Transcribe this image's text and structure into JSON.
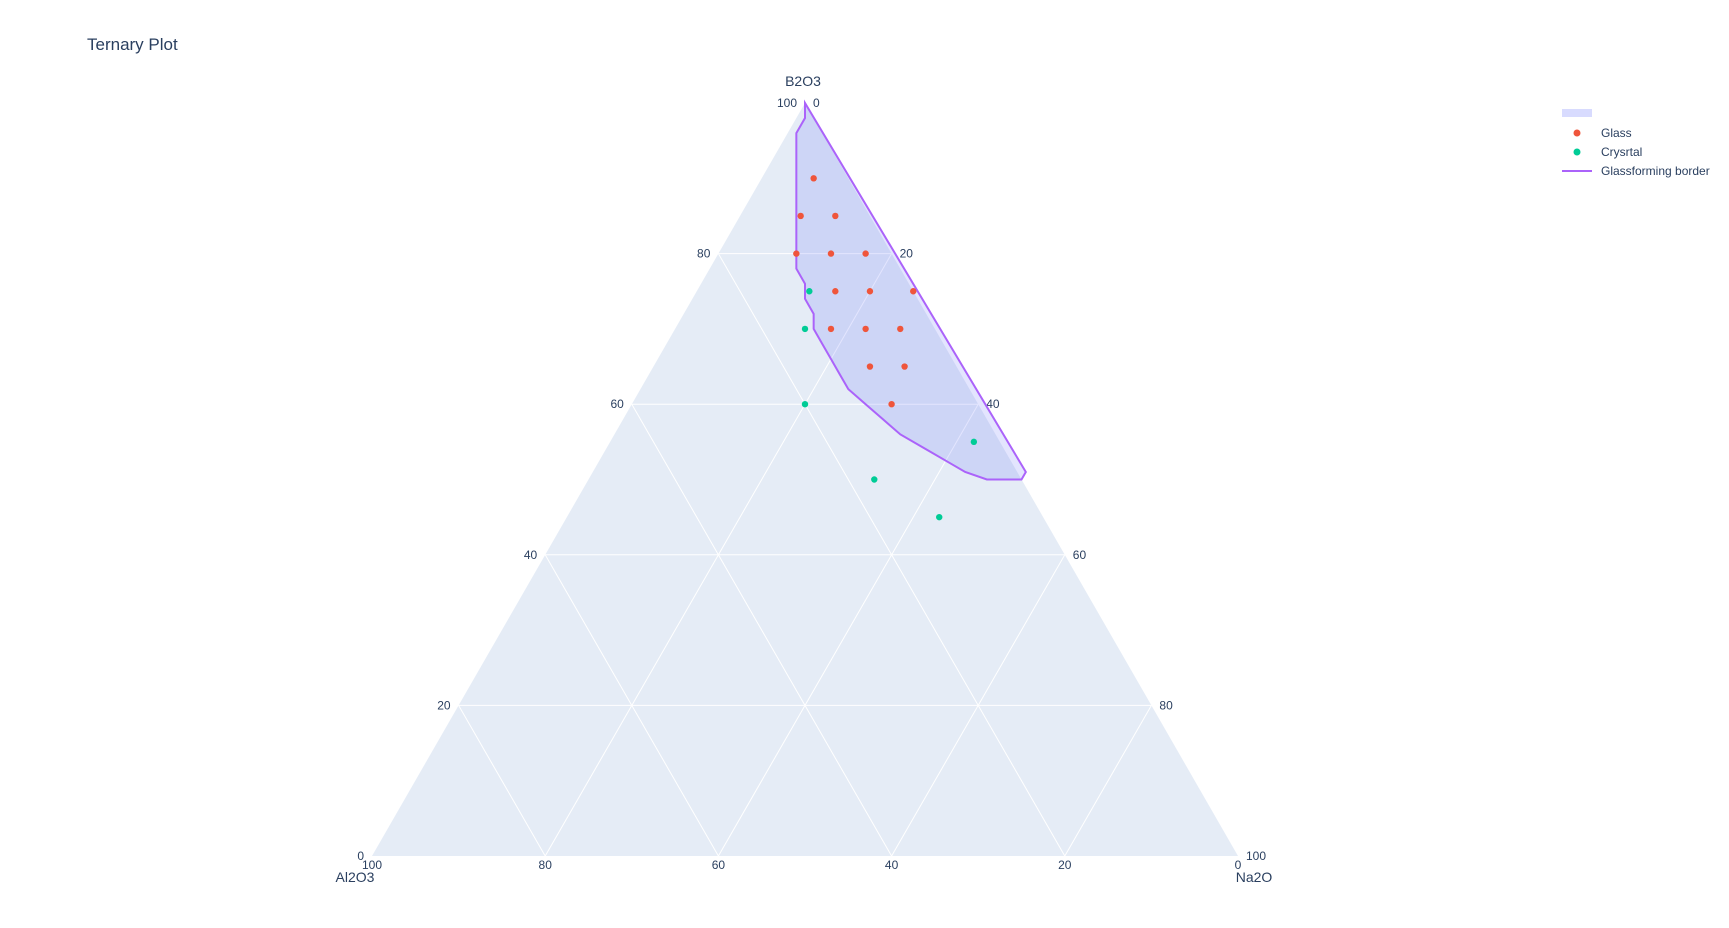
{
  "chart_data": {
    "type": "scatter",
    "subtype": "ternary",
    "title": "Ternary Plot",
    "axes": {
      "a": {
        "title": "B2O3",
        "ticks": [
          0,
          20,
          40,
          60,
          80,
          100
        ],
        "tick_labels": [
          "0",
          "20",
          "40",
          "60",
          "80",
          "100"
        ]
      },
      "b": {
        "title": "Al2O3",
        "ticks": [
          0,
          20,
          40,
          60,
          80,
          100
        ],
        "tick_labels": [
          "0",
          "20",
          "40",
          "60",
          "80",
          "100"
        ]
      },
      "c": {
        "title": "Na2O",
        "ticks": [
          0,
          20,
          40,
          60,
          80,
          100
        ],
        "tick_labels": [
          "0",
          "20",
          "40",
          "60",
          "80",
          "100"
        ]
      }
    },
    "grid": true,
    "legend_position": "top-right",
    "series": [
      {
        "name": "",
        "type": "filled-region",
        "color": "#636efa",
        "points": [
          [
            100,
            0,
            0
          ],
          [
            98,
            1,
            1
          ],
          [
            96,
            3,
            1
          ],
          [
            94,
            4,
            2
          ],
          [
            92,
            5,
            3
          ],
          [
            90,
            6,
            4
          ],
          [
            88,
            7,
            5
          ],
          [
            86,
            8,
            6
          ],
          [
            84,
            9,
            7
          ],
          [
            82,
            10,
            8
          ],
          [
            80,
            11,
            9
          ],
          [
            78,
            12,
            10
          ],
          [
            76,
            12,
            12
          ],
          [
            74,
            13,
            13
          ],
          [
            72,
            13,
            15
          ],
          [
            70,
            14,
            16
          ],
          [
            68,
            14,
            18
          ],
          [
            66,
            14,
            20
          ],
          [
            64,
            14,
            22
          ],
          [
            62,
            14,
            24
          ],
          [
            60,
            13,
            27
          ],
          [
            58,
            12,
            30
          ],
          [
            56,
            11,
            33
          ],
          [
            54,
            9,
            37
          ],
          [
            52,
            7,
            41
          ],
          [
            51,
            6,
            43
          ],
          [
            50,
            4,
            46
          ],
          [
            50,
            2,
            48
          ],
          [
            50,
            0,
            50
          ],
          [
            51,
            -1,
            50
          ]
        ]
      },
      {
        "name": "Glass",
        "type": "markers",
        "color": "#ef553b",
        "points": [
          [
            90,
            4,
            6
          ],
          [
            85,
            8,
            7
          ],
          [
            85,
            4,
            11
          ],
          [
            80,
            11,
            9
          ],
          [
            80,
            7,
            13
          ],
          [
            80,
            3,
            17
          ],
          [
            75,
            9,
            16
          ],
          [
            75,
            5,
            20
          ],
          [
            75,
            0,
            25
          ],
          [
            70,
            12,
            18
          ],
          [
            70,
            8,
            22
          ],
          [
            70,
            4,
            26
          ],
          [
            65,
            10,
            25
          ],
          [
            65,
            6,
            29
          ],
          [
            60,
            10,
            30
          ]
        ]
      },
      {
        "name": "Crysrtal",
        "type": "markers",
        "color": "#00cc96",
        "points": [
          [
            75,
            12,
            13
          ],
          [
            70,
            15,
            15
          ],
          [
            60,
            20,
            20
          ],
          [
            55,
            3,
            42
          ],
          [
            50,
            17,
            33
          ],
          [
            45,
            12,
            43
          ]
        ]
      },
      {
        "name": "Glassforming border",
        "type": "line",
        "color": "#ab63fa",
        "points": [
          [
            100,
            0,
            0
          ],
          [
            98,
            1,
            1
          ],
          [
            96,
            3,
            1
          ],
          [
            94,
            4,
            2
          ],
          [
            92,
            5,
            3
          ],
          [
            90,
            6,
            4
          ],
          [
            88,
            7,
            5
          ],
          [
            86,
            8,
            6
          ],
          [
            84,
            9,
            7
          ],
          [
            82,
            10,
            8
          ],
          [
            80,
            11,
            9
          ],
          [
            78,
            12,
            10
          ],
          [
            76,
            12,
            12
          ],
          [
            74,
            13,
            13
          ],
          [
            72,
            13,
            15
          ],
          [
            70,
            14,
            16
          ],
          [
            68,
            14,
            18
          ],
          [
            66,
            14,
            20
          ],
          [
            64,
            14,
            22
          ],
          [
            62,
            14,
            24
          ],
          [
            60,
            13,
            27
          ],
          [
            58,
            12,
            30
          ],
          [
            56,
            11,
            33
          ],
          [
            54,
            9,
            37
          ],
          [
            52,
            7,
            41
          ],
          [
            51,
            6,
            43
          ],
          [
            50,
            4,
            46
          ],
          [
            50,
            2,
            48
          ],
          [
            50,
            0,
            50
          ],
          [
            51,
            -1,
            50
          ]
        ]
      }
    ],
    "colors": {
      "plot_bg": "#e5ecf6",
      "grid": "#ffffff",
      "text": "#2a3f5f"
    }
  }
}
